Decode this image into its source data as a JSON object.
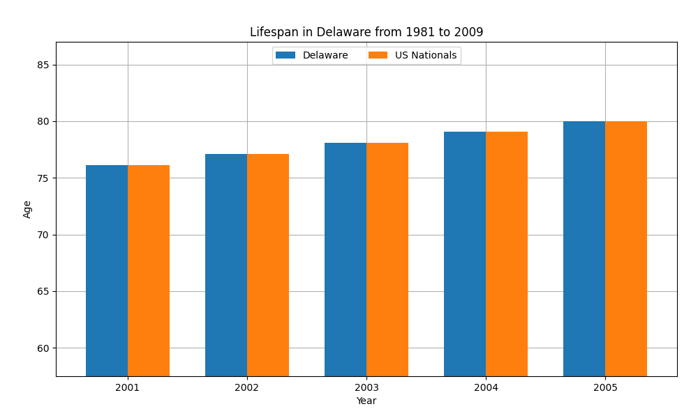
{
  "chart_data": {
    "type": "bar",
    "title": "Lifespan in Delaware from 1981 to 2009",
    "x_label": "Year",
    "y_label": "Age",
    "categories": [
      "2001",
      "2002",
      "2003",
      "2004",
      "2005"
    ],
    "series": [
      {
        "name": "Delaware",
        "values": [
          76.1,
          77.1,
          78.1,
          79.1,
          80.0
        ]
      },
      {
        "name": "US Nationals",
        "values": [
          76.1,
          77.1,
          78.1,
          79.1,
          80.0
        ]
      }
    ],
    "ylim": [
      57.5,
      87
    ],
    "yticks": [
      60,
      65,
      70,
      75,
      80,
      85
    ],
    "grid": true,
    "legend": "upper center"
  }
}
